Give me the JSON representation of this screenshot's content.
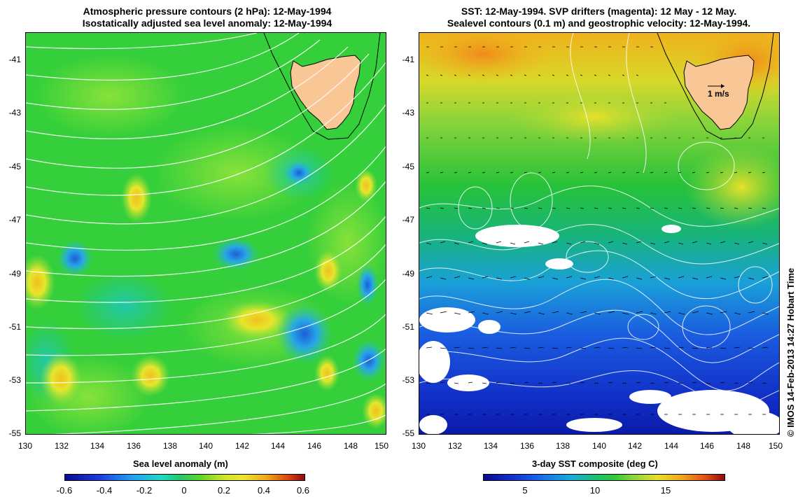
{
  "left_panel": {
    "title_line1": "Atmospheric pressure contours (2 hPa): 12-May-1994",
    "title_line2": "Isostatically adjusted sea level anomaly: 12-May-1994",
    "y_ticks": [
      "-41",
      "-43",
      "-45",
      "-47",
      "-49",
      "-51",
      "-53",
      "-55"
    ],
    "x_ticks": [
      "130",
      "132",
      "134",
      "136",
      "138",
      "140",
      "142",
      "144",
      "146",
      "148",
      "150"
    ],
    "colorbar_label": "Sea level anomaly (m)",
    "colorbar_ticks": [
      "-0.6",
      "-0.4",
      "-0.2",
      "0",
      "0.2",
      "0.4",
      "0.6"
    ]
  },
  "right_panel": {
    "title_line1": "SST: 12-May-1994. SVP drifters (magenta): 12 May - 12 May.",
    "title_line2": "Sealevel contours (0.1 m) and geostrophic velocity: 12-May-1994.",
    "y_ticks": [
      "-41",
      "-43",
      "-45",
      "-47",
      "-49",
      "-51",
      "-53",
      "-55"
    ],
    "x_ticks": [
      "130",
      "132",
      "134",
      "136",
      "138",
      "140",
      "142",
      "144",
      "146",
      "148",
      "150"
    ],
    "velocity_scale_label": "1 m/s",
    "colorbar_label": "3-day SST composite (deg C)",
    "colorbar_ticks": [
      "5",
      "10",
      "15"
    ]
  },
  "credit": "© IMOS 14-Feb-2013 14:27 Hobart Time",
  "colors": {
    "land": "#f9c796",
    "ocean_green": "#2fd62f",
    "sla_blue": "#2aa8e8",
    "sla_yellow": "#e8e82a",
    "sst_warm": "#f09a1a",
    "contour": "#ffffff"
  }
}
